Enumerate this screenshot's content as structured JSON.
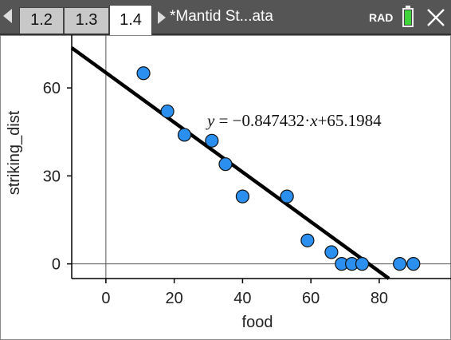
{
  "window": {
    "tabs": [
      "1.2",
      "1.3",
      "1.4"
    ],
    "active_tab": "1.4",
    "doc_title": "*Mantid St...ata",
    "angle_mode": "RAD",
    "battery_color": "#41d43a",
    "header_color": "#555555"
  },
  "chart_data": {
    "type": "scatter",
    "xlabel": "food",
    "ylabel": "striking_dist",
    "x_ticks": [
      "0",
      "20",
      "40",
      "60",
      "80"
    ],
    "y_ticks": [
      "0",
      "30",
      "60"
    ],
    "xlim": [
      -10,
      101
    ],
    "ylim": [
      -5,
      78
    ],
    "points": [
      {
        "x": 11,
        "y": 65
      },
      {
        "x": 18,
        "y": 52
      },
      {
        "x": 23,
        "y": 44
      },
      {
        "x": 31,
        "y": 42
      },
      {
        "x": 35,
        "y": 34
      },
      {
        "x": 40,
        "y": 23
      },
      {
        "x": 53,
        "y": 23
      },
      {
        "x": 59,
        "y": 8
      },
      {
        "x": 66,
        "y": 4
      },
      {
        "x": 69,
        "y": 0
      },
      {
        "x": 72,
        "y": 0
      },
      {
        "x": 75,
        "y": 0
      },
      {
        "x": 86,
        "y": 0
      },
      {
        "x": 90,
        "y": 0
      }
    ],
    "regression": {
      "slope": -0.847432,
      "intercept": 65.1984,
      "equation_text": {
        "y": "y",
        "eq": " = ",
        "slope": "−0.847432",
        "dot": "·",
        "x": "x",
        "rest": "+65.1984"
      }
    },
    "point_color": "#2b8ff0",
    "line_color": "#000000"
  }
}
